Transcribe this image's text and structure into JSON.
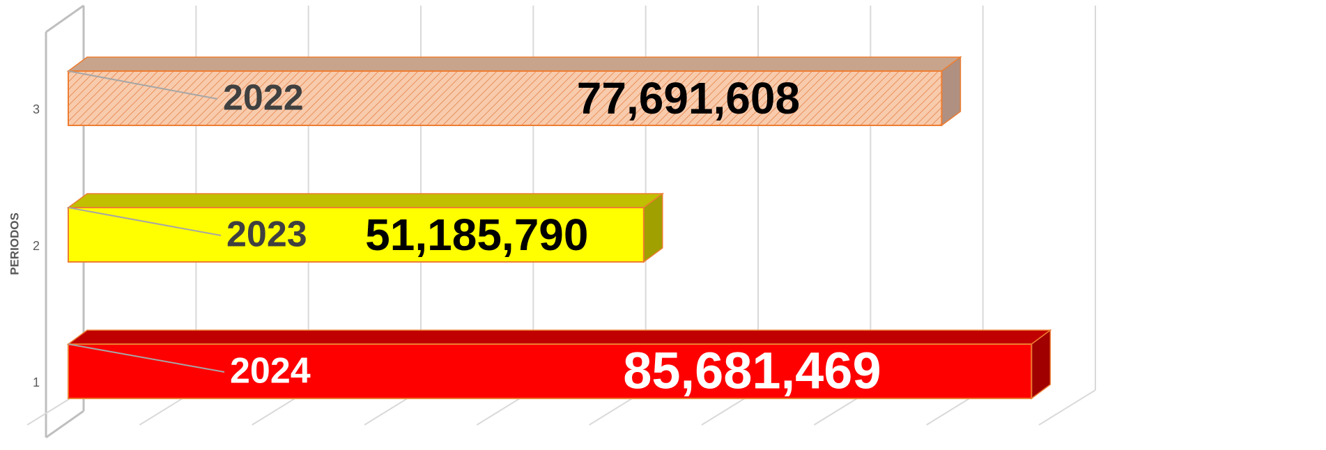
{
  "chart_data": {
    "type": "bar3d_horizontal",
    "ylabel": "PERIODOS",
    "categories": [
      "1",
      "2",
      "3"
    ],
    "bar_labels": [
      "2024",
      "2023",
      "2022"
    ],
    "values": [
      85681469,
      51185790,
      77691608
    ],
    "value_labels": [
      "85,681,469",
      "51,185,790",
      "77,691,608"
    ],
    "colors": [
      "#ff0000",
      "#ffff00",
      "#f8cbad"
    ],
    "top_colors": [
      "#c00000",
      "#c0c000",
      "#c8a48c"
    ],
    "side_colors": [
      "#a00000",
      "#a0a000",
      "#b09080"
    ],
    "hatch": [
      false,
      false,
      true
    ],
    "value_label_colors": [
      "#ffffff",
      "#000000",
      "#000000"
    ],
    "xlim": [
      0,
      90000000
    ],
    "xticks": [
      0,
      10000000,
      20000000,
      30000000,
      40000000,
      50000000,
      60000000,
      70000000,
      80000000,
      90000000
    ],
    "grid": true
  }
}
